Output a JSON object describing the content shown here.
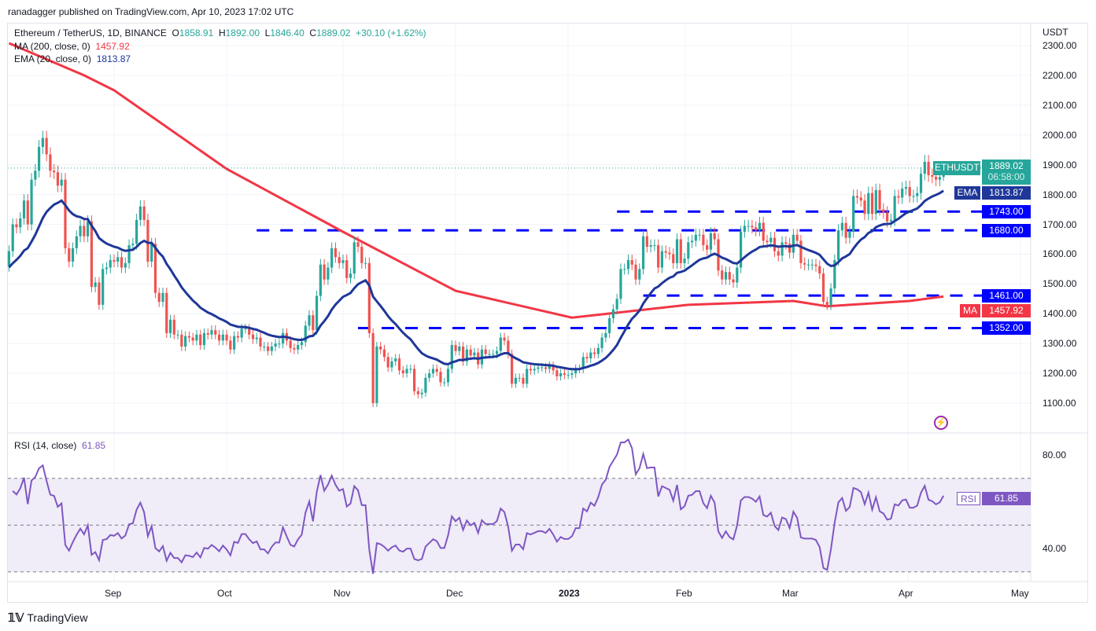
{
  "publisher_line": "ranadagger published on TradingView.com, Apr 10, 2023 17:02 UTC",
  "legend": {
    "symbol": "Ethereum / TetherUS, 1D, BINANCE",
    "o_label": "O",
    "o": "1858.91",
    "h_label": "H",
    "h": "1892.00",
    "l_label": "L",
    "l": "1846.40",
    "c_label": "C",
    "c": "1889.02",
    "change": "+30.10 (+1.62%)",
    "ma_label": "MA (200, close, 0)",
    "ma_value": "1457.92",
    "ema_label": "EMA (20, close, 0)",
    "ema_value": "1813.87",
    "rsi_label": "RSI (14, close)",
    "rsi_value": "61.85"
  },
  "price_axis": {
    "currency": "USDT",
    "ticks": [
      "2300.00",
      "2200.00",
      "2100.00",
      "2000.00",
      "1900.00",
      "1800.00",
      "1700.00",
      "1600.00",
      "1500.00",
      "1400.00",
      "1300.00",
      "1200.00",
      "1100.00"
    ]
  },
  "rsi_axis": {
    "ticks": [
      "80.00",
      "40.00"
    ]
  },
  "time_axis": [
    "Sep",
    "Oct",
    "Nov",
    "Dec",
    "2023",
    "Feb",
    "Mar",
    "Apr",
    "May"
  ],
  "badges": {
    "symbol": "ETHUSDT",
    "price": "1889.02",
    "countdown": "06:58:00",
    "ema": "EMA",
    "ema_value": "1813.87",
    "ma": "MA",
    "ma_value": "1457.92",
    "rsi": "RSI",
    "rsi_value": "61.85"
  },
  "levels": [
    {
      "value": 1743,
      "label": "1743.00",
      "from": "2023-01-13"
    },
    {
      "value": 1680,
      "label": "1680.00",
      "from": "2022-10-09"
    },
    {
      "value": 1461,
      "label": "1461.00",
      "from": "2023-01-20"
    },
    {
      "value": 1352,
      "label": "1352.00",
      "from": "2022-11-05"
    }
  ],
  "colors": {
    "up": "#26a69a",
    "down": "#ef5350",
    "ema": "#1e3799",
    "ma": "#f23645",
    "level": "#0000ff",
    "rsi": "#7e57c2",
    "rsi_band": "#f0ecf8"
  },
  "brand": "TradingView",
  "chart_data": {
    "type": "candlestick",
    "title": "Ethereum / TetherUS, 1D, BINANCE",
    "start_date": "2022-08-04",
    "ylim": [
      1050,
      2350
    ],
    "rsi_ylim": [
      22,
      95
    ],
    "rsi_bands": [
      70,
      50,
      30
    ],
    "grid": true,
    "closes": [
      1610,
      1700,
      1690,
      1720,
      1780,
      1700,
      1850,
      1880,
      1960,
      1990,
      1935,
      1880,
      1875,
      1830,
      1850,
      1620,
      1575,
      1620,
      1660,
      1695,
      1660,
      1710,
      1490,
      1505,
      1430,
      1550,
      1555,
      1580,
      1575,
      1590,
      1555,
      1570,
      1630,
      1635,
      1715,
      1760,
      1715,
      1575,
      1635,
      1470,
      1440,
      1470,
      1335,
      1380,
      1330,
      1330,
      1290,
      1325,
      1320,
      1310,
      1330,
      1295,
      1335,
      1330,
      1345,
      1330,
      1310,
      1330,
      1310,
      1280,
      1325,
      1320,
      1350,
      1350,
      1330,
      1315,
      1320,
      1290,
      1290,
      1275,
      1290,
      1300,
      1300,
      1335,
      1310,
      1285,
      1280,
      1295,
      1305,
      1360,
      1395,
      1345,
      1460,
      1565,
      1515,
      1555,
      1620,
      1590,
      1570,
      1580,
      1520,
      1535,
      1640,
      1625,
      1570,
      1570,
      1335,
      1100,
      1290,
      1280,
      1255,
      1220,
      1240,
      1250,
      1210,
      1200,
      1215,
      1215,
      1140,
      1130,
      1135,
      1185,
      1200,
      1215,
      1205,
      1170,
      1170,
      1215,
      1295,
      1275,
      1290,
      1240,
      1280,
      1260,
      1270,
      1230,
      1280,
      1265,
      1265,
      1265,
      1275,
      1320,
      1310,
      1265,
      1165,
      1185,
      1185,
      1165,
      1215,
      1210,
      1215,
      1220,
      1220,
      1215,
      1225,
      1210,
      1190,
      1200,
      1195,
      1195,
      1200,
      1215,
      1215,
      1255,
      1250,
      1270,
      1265,
      1285,
      1320,
      1335,
      1385,
      1415,
      1450,
      1550,
      1550,
      1580,
      1565,
      1515,
      1550,
      1660,
      1625,
      1630,
      1630,
      1555,
      1610,
      1605,
      1600,
      1570,
      1650,
      1570,
      1585,
      1640,
      1645,
      1665,
      1665,
      1630,
      1615,
      1670,
      1650,
      1545,
      1515,
      1540,
      1515,
      1505,
      1555,
      1675,
      1695,
      1695,
      1690,
      1680,
      1705,
      1645,
      1640,
      1655,
      1610,
      1595,
      1640,
      1635,
      1605,
      1665,
      1645,
      1570,
      1565,
      1565,
      1565,
      1560,
      1535,
      1440,
      1430,
      1485,
      1580,
      1680,
      1705,
      1655,
      1675,
      1795,
      1790,
      1780,
      1735,
      1805,
      1735,
      1815,
      1750,
      1740,
      1710,
      1715,
      1795,
      1790,
      1820,
      1825,
      1795,
      1795,
      1805,
      1870,
      1910,
      1865,
      1860,
      1850,
      1858.91,
      1889.02
    ],
    "ma200": [
      [
        "2022-08-04",
        2308
      ],
      [
        "2022-08-24",
        2200
      ],
      [
        "2022-09-01",
        2150
      ],
      [
        "2022-10-01",
        1886
      ],
      [
        "2022-11-01",
        1675
      ],
      [
        "2022-12-01",
        1477
      ],
      [
        "2023-01-01",
        1387
      ],
      [
        "2023-02-01",
        1430
      ],
      [
        "2023-03-01",
        1443
      ],
      [
        "2023-03-10",
        1425
      ],
      [
        "2023-04-01",
        1443
      ],
      [
        "2023-04-10",
        1457.92
      ]
    ],
    "last": {
      "open": 1858.91,
      "high": 1892.0,
      "low": 1846.4,
      "close": 1889.02,
      "ema20": 1813.87,
      "ma200": 1457.92,
      "rsi": 61.85
    }
  }
}
